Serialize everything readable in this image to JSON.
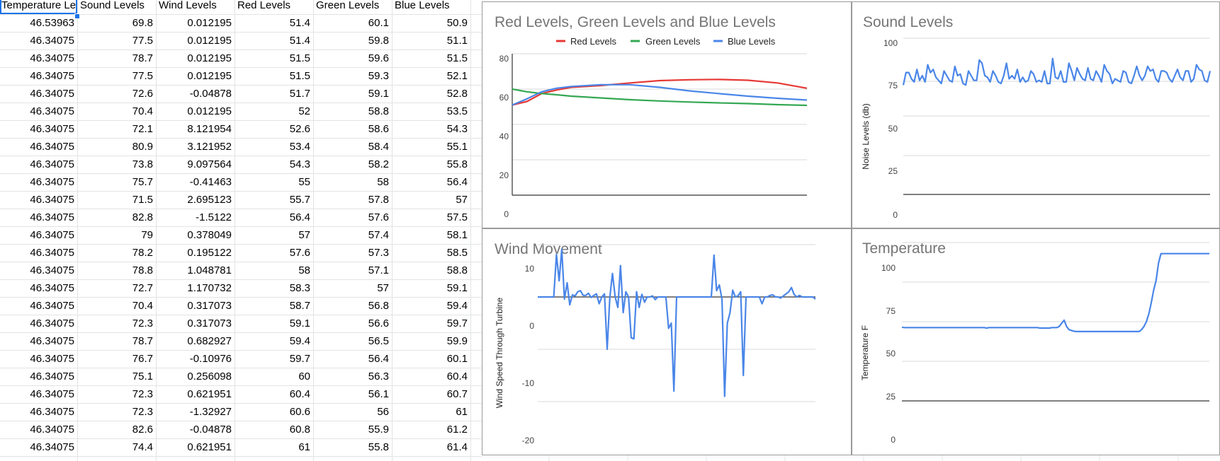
{
  "sheet": {
    "headers": [
      "Temperature Levels",
      "Sound Levels",
      "Wind Levels",
      "Red Levels",
      "Green Levels",
      "Blue Levels"
    ],
    "rows": [
      [
        "46.53963",
        "69.8",
        "0.012195",
        "51.4",
        "60.1",
        "50.9"
      ],
      [
        "46.34075",
        "77.5",
        "0.012195",
        "51.4",
        "59.8",
        "51.1"
      ],
      [
        "46.34075",
        "78.7",
        "0.012195",
        "51.5",
        "59.6",
        "51.5"
      ],
      [
        "46.34075",
        "77.5",
        "0.012195",
        "51.5",
        "59.3",
        "52.1"
      ],
      [
        "46.34075",
        "72.6",
        "-0.04878",
        "51.7",
        "59.1",
        "52.8"
      ],
      [
        "46.34075",
        "70.4",
        "0.012195",
        "52",
        "58.8",
        "53.5"
      ],
      [
        "46.34075",
        "72.1",
        "8.121954",
        "52.6",
        "58.6",
        "54.3"
      ],
      [
        "46.34075",
        "80.9",
        "3.121952",
        "53.4",
        "58.4",
        "55.1"
      ],
      [
        "46.34075",
        "73.8",
        "9.097564",
        "54.3",
        "58.2",
        "55.8"
      ],
      [
        "46.34075",
        "75.7",
        "-0.41463",
        "55",
        "58",
        "56.4"
      ],
      [
        "46.34075",
        "71.5",
        "2.695123",
        "55.7",
        "57.8",
        "57"
      ],
      [
        "46.34075",
        "82.8",
        "-1.5122",
        "56.4",
        "57.6",
        "57.5"
      ],
      [
        "46.34075",
        "79",
        "0.378049",
        "57",
        "57.4",
        "58.1"
      ],
      [
        "46.34075",
        "78.2",
        "0.195122",
        "57.6",
        "57.3",
        "58.5"
      ],
      [
        "46.34075",
        "78.8",
        "1.048781",
        "58",
        "57.1",
        "58.8"
      ],
      [
        "46.34075",
        "72.7",
        "1.170732",
        "58.3",
        "57",
        "59.1"
      ],
      [
        "46.34075",
        "70.4",
        "0.317073",
        "58.7",
        "56.8",
        "59.4"
      ],
      [
        "46.34075",
        "72.3",
        "0.317073",
        "59.1",
        "56.6",
        "59.7"
      ],
      [
        "46.34075",
        "78.7",
        "0.682927",
        "59.4",
        "56.5",
        "59.9"
      ],
      [
        "46.34075",
        "76.7",
        "-0.10976",
        "59.7",
        "56.4",
        "60.1"
      ],
      [
        "46.34075",
        "75.1",
        "0.256098",
        "60",
        "56.3",
        "60.4"
      ],
      [
        "46.34075",
        "72.3",
        "0.621951",
        "60.4",
        "56.1",
        "60.7"
      ],
      [
        "46.34075",
        "72.3",
        "-1.32927",
        "60.6",
        "56",
        "61"
      ],
      [
        "46.34075",
        "82.6",
        "-0.04878",
        "60.8",
        "55.9",
        "61.2"
      ],
      [
        "46.34075",
        "74.4",
        "0.621951",
        "61",
        "55.8",
        "61.4"
      ]
    ]
  },
  "charts": {
    "rgb": {
      "title": "Red Levels, Green Levels and Blue Levels",
      "legend": [
        "Red Levels",
        "Green Levels",
        "Blue Levels"
      ],
      "yticks": [
        "0",
        "20",
        "40",
        "60",
        "80"
      ]
    },
    "sound": {
      "title": "Sound Levels",
      "ylabel": "Noise Levels (db)",
      "yticks": [
        "0",
        "25",
        "50",
        "75",
        "100"
      ]
    },
    "wind": {
      "title": "Wind Movement",
      "ylabel": "Wind Speed Through Turbine",
      "yticks": [
        "-20",
        "-10",
        "0",
        "10"
      ]
    },
    "temp": {
      "title": "Temperature",
      "ylabel": "Temperature F",
      "yticks": [
        "0",
        "25",
        "50",
        "75",
        "100"
      ]
    }
  },
  "colors": {
    "red": "#e53935",
    "green": "#34a853",
    "blue": "#4a86e8",
    "selection": "#1a73e8"
  },
  "chart_data": [
    {
      "type": "line",
      "title": "Red Levels, Green Levels and Blue Levels",
      "ylim": [
        0,
        80
      ],
      "legend": "top",
      "x": [
        0,
        5,
        10,
        15,
        20,
        30,
        40,
        50,
        60,
        70,
        80,
        90,
        100
      ],
      "series": [
        {
          "name": "Red Levels",
          "values": [
            51,
            53,
            57.5,
            59.5,
            61,
            62,
            63.5,
            64.8,
            65.3,
            65.5,
            65,
            63.5,
            60.5
          ]
        },
        {
          "name": "Green Levels",
          "values": [
            60,
            58.5,
            57.5,
            56.8,
            56,
            55,
            54,
            53.3,
            52.7,
            52.2,
            51.8,
            51.2,
            50.8
          ]
        },
        {
          "name": "Blue Levels",
          "values": [
            51,
            54.5,
            58.5,
            60.5,
            61.5,
            62.5,
            62.5,
            61,
            59,
            57.5,
            56,
            54.8,
            53.8
          ]
        }
      ]
    },
    {
      "type": "line",
      "title": "Sound Levels",
      "ylabel": "Noise Levels (db)",
      "ylim": [
        0,
        100
      ],
      "series": [
        {
          "values": [
            70,
            78,
            78,
            74,
            72,
            80,
            73,
            76,
            72,
            83,
            78,
            80,
            75,
            73,
            71,
            79,
            76,
            73,
            72,
            82,
            76,
            77,
            71,
            70,
            79,
            76,
            73,
            73,
            86,
            84,
            76,
            75,
            72,
            79,
            76,
            72,
            71,
            76,
            84,
            74,
            76,
            74,
            80,
            72,
            75,
            72,
            73,
            79,
            77,
            72,
            73,
            72,
            79,
            71,
            71,
            87,
            75,
            74,
            79,
            72,
            72,
            84,
            79,
            73,
            81,
            77,
            74,
            73,
            81,
            74,
            73,
            79,
            76,
            72,
            83,
            79,
            77,
            71,
            74,
            73,
            72,
            79,
            78,
            72,
            71,
            76,
            82,
            76,
            73,
            76,
            82,
            79,
            80,
            74,
            72,
            79,
            79,
            78,
            74,
            72,
            76,
            80,
            75,
            73,
            79,
            79,
            72,
            74,
            83,
            80,
            79,
            73,
            72,
            79
          ]
        }
      ]
    },
    {
      "type": "line",
      "title": "Wind Movement",
      "ylabel": "Wind Speed Through Turbine",
      "ylim": [
        -20,
        10
      ],
      "series": [
        {
          "values": [
            0,
            0,
            0,
            0,
            0,
            0,
            0,
            8.1,
            3.1,
            9.1,
            -0.4,
            2.7,
            -1.5,
            0.4,
            0.2,
            1,
            1.2,
            0.3,
            0.3,
            0.7,
            -0.1,
            0.3,
            0.6,
            -1.3,
            0,
            0.6,
            -10,
            0,
            4.5,
            0,
            -2,
            6,
            -3,
            1,
            0,
            -7.8,
            -8,
            1,
            -2,
            0.5,
            -1,
            0,
            0,
            0.2,
            -0.5,
            0,
            0,
            0,
            0,
            -6,
            -5,
            -18,
            0,
            0,
            0,
            0,
            0,
            0,
            0,
            0,
            0,
            0,
            0,
            0,
            0,
            0,
            8,
            1.2,
            2.3,
            -0.5,
            -19,
            -5,
            -3,
            1.3,
            0,
            0.2,
            1,
            -15,
            0,
            0,
            0,
            0,
            0,
            0,
            -1.3,
            0,
            0,
            0.3,
            0.4,
            0,
            0,
            -0.2,
            0.2,
            0.6,
            1,
            1.8,
            0.5,
            0,
            0.3,
            0,
            0,
            0,
            0,
            0,
            -0.4
          ]
        }
      ]
    },
    {
      "type": "line",
      "title": "Temperature",
      "ylabel": "Temperature F",
      "ylim": [
        0,
        100
      ],
      "series": [
        {
          "values": [
            46.5,
            46.3,
            46.3,
            46.3,
            46.3,
            46.3,
            46.3,
            46.3,
            46.3,
            46.3,
            46.3,
            46.3,
            46.3,
            46.3,
            46.3,
            46.3,
            46.3,
            46.3,
            46.3,
            46.3,
            46.3,
            46.3,
            46.3,
            46.3,
            46.3,
            46.3,
            46.3,
            46.3,
            46.3,
            46.3,
            46.3,
            46.3,
            46.3,
            46.3,
            46.3,
            46,
            46.3,
            46.3,
            46.3,
            46.3,
            46.3,
            46.3,
            46.3,
            46.3,
            46.3,
            46.3,
            46.3,
            46.3,
            46.3,
            46.3,
            46.3,
            46.3,
            46.3,
            46.3,
            46.3,
            46.3,
            46.3,
            46,
            46,
            46,
            46,
            46,
            46.3,
            46.3,
            46.3,
            47,
            49,
            51,
            47,
            45,
            44.5,
            44,
            43.8,
            43.8,
            43.8,
            43.8,
            43.8,
            43.8,
            43.8,
            43.8,
            43.8,
            43.8,
            43.8,
            43.8,
            43.8,
            43.8,
            43.8,
            43.8,
            43.8,
            43.8,
            43.8,
            43.8,
            43.8,
            43.8,
            43.8,
            43.8,
            43.8,
            43.8,
            43.8,
            45,
            47,
            50,
            55,
            62,
            70,
            76,
            87,
            93,
            93,
            93,
            93,
            93,
            93,
            93,
            93,
            93,
            93,
            93,
            93,
            93,
            93,
            93,
            93,
            93,
            93,
            93,
            93,
            93
          ]
        }
      ]
    }
  ]
}
